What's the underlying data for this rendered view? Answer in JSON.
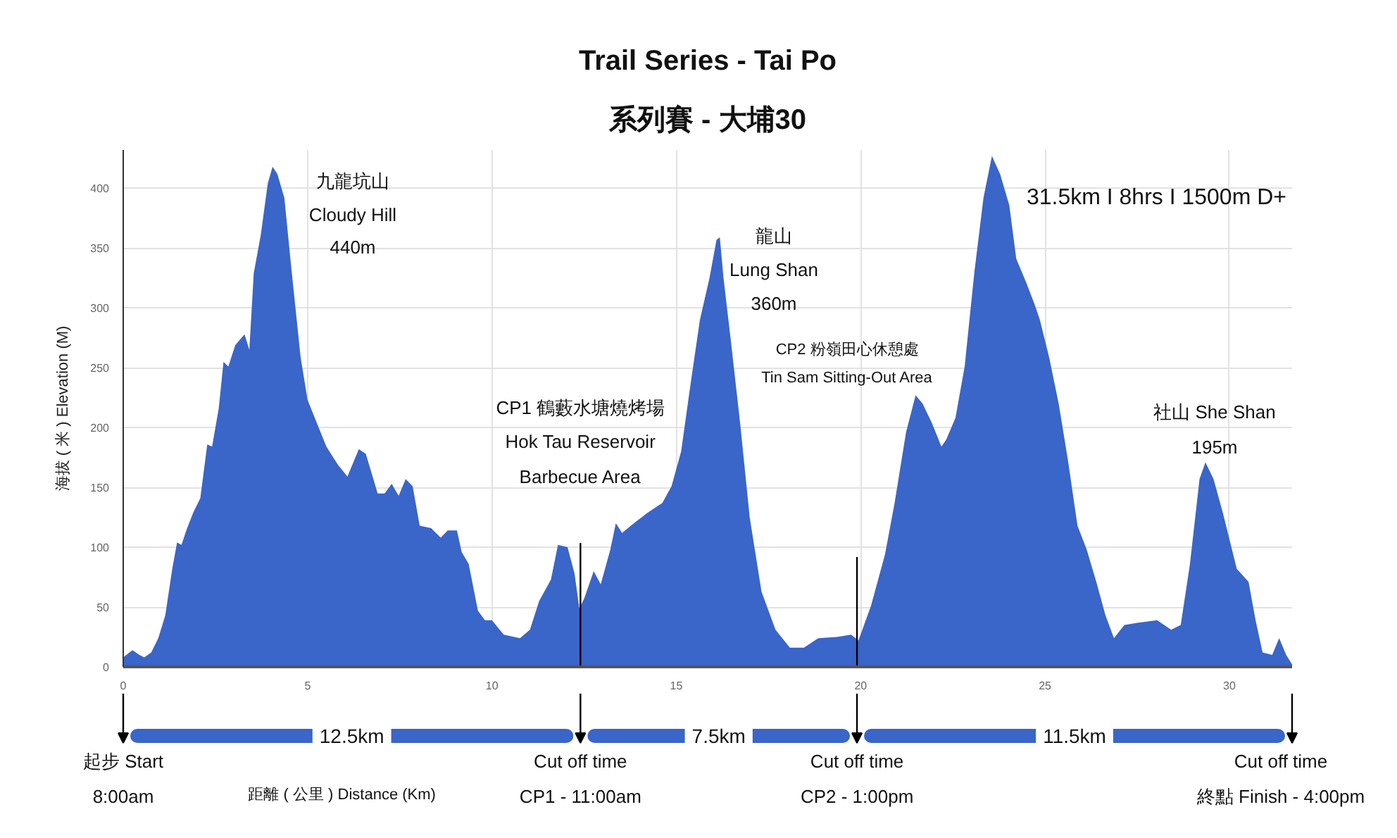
{
  "chart_data": {
    "type": "area",
    "title": "Trail Series - Tai Po",
    "subtitle": "系列賽 - 大埔30",
    "ylabel": "海拔 ( 米 ) Elevation (M)",
    "color": "#3a65c9",
    "x": [
      0,
      0.25,
      0.44,
      0.57,
      0.76,
      0.95,
      1.14,
      1.33,
      1.46,
      1.58,
      1.71,
      1.9,
      2.09,
      2.28,
      2.41,
      2.59,
      2.72,
      2.85,
      3.04,
      3.29,
      3.42,
      3.54,
      3.73,
      3.92,
      4.05,
      4.18,
      4.37,
      4.56,
      4.81,
      5.0,
      5.25,
      5.51,
      5.82,
      6.08,
      6.39,
      6.58,
      6.9,
      7.09,
      7.28,
      7.47,
      7.66,
      7.85,
      8.04,
      8.35,
      8.61,
      8.8,
      9.05,
      9.18,
      9.37,
      9.62,
      9.81,
      10.0,
      10.32,
      10.76,
      11.03,
      11.28,
      11.6,
      11.79,
      12.05,
      12.24,
      12.37,
      12.5,
      12.76,
      12.95,
      13.21,
      13.36,
      13.53,
      13.85,
      14.23,
      14.62,
      14.87,
      15.13,
      15.38,
      15.64,
      15.9,
      16.09,
      16.18,
      16.28,
      16.47,
      16.73,
      16.99,
      17.31,
      17.69,
      18.08,
      18.46,
      18.85,
      19.36,
      19.74,
      19.94,
      20.28,
      20.66,
      20.92,
      21.23,
      21.49,
      21.68,
      21.93,
      22.19,
      22.32,
      22.57,
      22.82,
      23.08,
      23.33,
      23.56,
      23.78,
      24.03,
      24.22,
      24.48,
      24.73,
      24.86,
      25.11,
      25.37,
      25.62,
      25.88,
      26.13,
      26.39,
      26.64,
      26.87,
      27.15,
      27.53,
      28.04,
      28.42,
      28.68,
      28.93,
      29.19,
      29.35,
      29.57,
      29.82,
      30.2,
      30.52,
      30.71,
      30.9,
      31.16,
      31.35,
      31.54,
      31.7
    ],
    "values": [
      8,
      14,
      10,
      8,
      12,
      24,
      43,
      82,
      104,
      102,
      114,
      129,
      141,
      186,
      184,
      216,
      255,
      251,
      269,
      278,
      265,
      329,
      361,
      404,
      418,
      412,
      392,
      333,
      259,
      223,
      204,
      184,
      169,
      159,
      182,
      178,
      145,
      145,
      153,
      143,
      157,
      151,
      118,
      116,
      108,
      114,
      114,
      96,
      86,
      47,
      39,
      39,
      27,
      24,
      31,
      55,
      73,
      102,
      100,
      78,
      49,
      57,
      80,
      69,
      98,
      120,
      112,
      120,
      129,
      137,
      151,
      180,
      235,
      290,
      325,
      357,
      359,
      325,
      275,
      204,
      125,
      63,
      31,
      16,
      16,
      24,
      25,
      27,
      22,
      51,
      94,
      137,
      196,
      227,
      220,
      204,
      184,
      190,
      208,
      251,
      329,
      392,
      427,
      412,
      386,
      341,
      322,
      302,
      290,
      259,
      220,
      173,
      118,
      98,
      71,
      43,
      24,
      35,
      37,
      39,
      31,
      35,
      86,
      157,
      171,
      157,
      129,
      82,
      71,
      39,
      12,
      10,
      24,
      10,
      2
    ],
    "xlim": [
      0,
      31.7
    ],
    "xticks": [
      0,
      5,
      10,
      15,
      20,
      25,
      30
    ],
    "ylim": [
      0,
      432
    ],
    "yticks": [
      0,
      50,
      100,
      150,
      200,
      250,
      300,
      350,
      400
    ],
    "grid": true,
    "ref_lines": [
      {
        "axis": "x",
        "value": 12.4,
        "color": "#000000"
      },
      {
        "axis": "x",
        "value": 19.9,
        "color": "#000000"
      }
    ],
    "annotations": [
      "九龍坑山",
      "Cloudy Hill",
      "440m",
      "CP1 鶴藪水塘燒烤場",
      "Hok Tau Reservoir",
      "Barbecue Area",
      "龍山",
      "Lung Shan",
      "360m",
      "CP2 粉嶺田心休憩處",
      "Tin Sam Sitting-Out Area",
      "社山 She Shan",
      "195m",
      "31.5km I 8hrs I 1500m D+",
      "起步 Start",
      "8:00am",
      "距離 ( 公里 ) Distance (Km)",
      "12.5km",
      "Cut off time",
      "CP1 - 11:00am",
      "7.5km",
      "Cut off time",
      "CP2 - 1:00pm",
      "11.5km",
      "Cut off time",
      "終點 Finish - 4:00pm"
    ]
  }
}
